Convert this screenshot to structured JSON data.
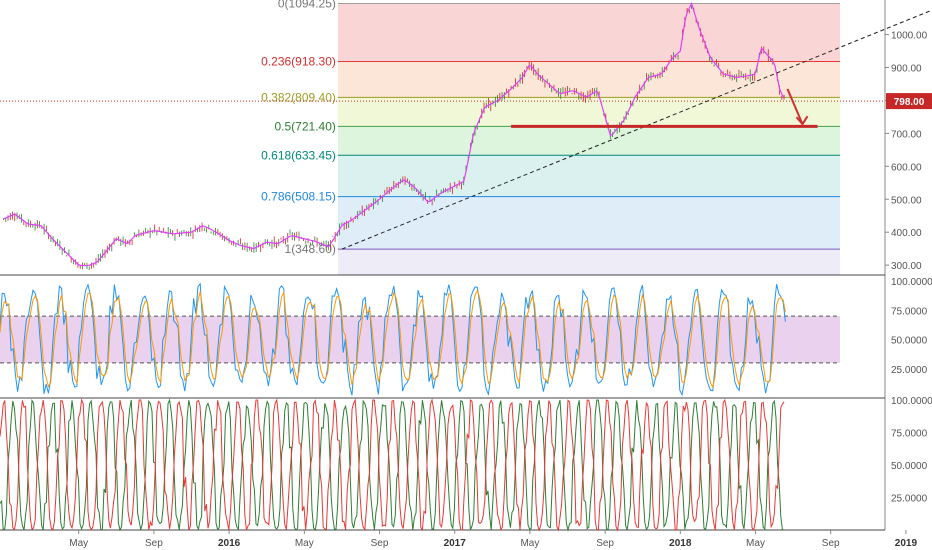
{
  "colors": {
    "fib_0": "#f8d0d0",
    "fib_236": "#fbe3d4",
    "fib_382": "#eef7d4",
    "fib_5": "#d9f3d9",
    "fib_618": "#d6f0ee",
    "fib_786": "#dcebf8",
    "fib_1": "#ecebf6",
    "price_up": "#2e7d32",
    "price_down": "#c62828",
    "ma_line": "#e040fb",
    "price_tag": "#c62828",
    "stoch_k": "#2196f3",
    "stoch_d": "#ff9800",
    "stoch_band": "#e1bee7",
    "osc_red": "#e53935",
    "osc_green": "#2e7d32"
  },
  "price_tag": "798.00",
  "chart_data": [
    {
      "type": "line",
      "x_unit": "month index from Jan 2015",
      "fib_levels": [
        {
          "label": "0(1094.25)",
          "value": 1094.25
        },
        {
          "label": "0.236(918.30)",
          "value": 918.3
        },
        {
          "label": "0.382(809.40)",
          "value": 809.4
        },
        {
          "label": "0.5(721.40)",
          "value": 721.4
        },
        {
          "label": "0.618(633.45)",
          "value": 633.45
        },
        {
          "label": "0.786(508.15)",
          "value": 508.15
        },
        {
          "label": "1(348.60)",
          "value": 348.6
        }
      ],
      "y_ticks": [
        "1000.00",
        "900.00",
        "800.00",
        "700.00",
        "600.00",
        "500.00",
        "400.00",
        "300.00"
      ],
      "y_tick_values": [
        1000,
        900,
        800,
        700,
        600,
        500,
        400,
        300
      ],
      "ylim": [
        270,
        1105
      ],
      "x_ticks": [
        "May",
        "Sep",
        "2016",
        "May",
        "Sep",
        "2017",
        "May",
        "Sep",
        "2018",
        "May",
        "Sep",
        "2019"
      ],
      "x_tick_months": [
        4,
        8,
        12,
        16,
        20,
        24,
        28,
        32,
        36,
        40,
        44,
        48
      ],
      "bold_ticks": [
        "2016",
        "2017",
        "2018",
        "2019"
      ],
      "price_path": [
        [
          0,
          440
        ],
        [
          0.6,
          455
        ],
        [
          1.3,
          425
        ],
        [
          2,
          420
        ],
        [
          2.6,
          380
        ],
        [
          3.3,
          340
        ],
        [
          4,
          300
        ],
        [
          4.5,
          298
        ],
        [
          5,
          310
        ],
        [
          6,
          380
        ],
        [
          6.6,
          365
        ],
        [
          7,
          390
        ],
        [
          8,
          405
        ],
        [
          9,
          395
        ],
        [
          10,
          400
        ],
        [
          10.6,
          420
        ],
        [
          11,
          410
        ],
        [
          11.6,
          390
        ],
        [
          12,
          375
        ],
        [
          12.6,
          360
        ],
        [
          13.3,
          350
        ],
        [
          14,
          370
        ],
        [
          14.6,
          365
        ],
        [
          15.3,
          390
        ],
        [
          16,
          380
        ],
        [
          16.6,
          372
        ],
        [
          17.3,
          355
        ],
        [
          18,
          420
        ],
        [
          18.6,
          440
        ],
        [
          19.3,
          470
        ],
        [
          20,
          500
        ],
        [
          20.6,
          530
        ],
        [
          21.3,
          560
        ],
        [
          21.9,
          535
        ],
        [
          22.6,
          490
        ],
        [
          23.3,
          520
        ],
        [
          24,
          540
        ],
        [
          24.5,
          555
        ],
        [
          25,
          700
        ],
        [
          25.6,
          780
        ],
        [
          26.3,
          800
        ],
        [
          27,
          835
        ],
        [
          27.6,
          870
        ],
        [
          28,
          910
        ],
        [
          28.4,
          880
        ],
        [
          29,
          850
        ],
        [
          29.6,
          820
        ],
        [
          30.3,
          830
        ],
        [
          31,
          810
        ],
        [
          31.6,
          830
        ],
        [
          32.3,
          690
        ],
        [
          33,
          740
        ],
        [
          33.6,
          810
        ],
        [
          34.3,
          870
        ],
        [
          35,
          880
        ],
        [
          35.6,
          930
        ],
        [
          36,
          950
        ],
        [
          36.3,
          1060
        ],
        [
          36.6,
          1094
        ],
        [
          37,
          1020
        ],
        [
          37.6,
          930
        ],
        [
          38.3,
          880
        ],
        [
          39,
          870
        ],
        [
          39.6,
          875
        ],
        [
          40,
          880
        ],
        [
          40.3,
          960
        ],
        [
          40.6,
          940
        ],
        [
          41,
          915
        ],
        [
          41.3,
          830
        ],
        [
          41.6,
          798
        ]
      ],
      "trend_line": {
        "from": [
          18,
          348.6
        ],
        "to": [
          50.5,
          1100
        ]
      },
      "support_line": {
        "from": [
          27,
          721.4
        ],
        "to": [
          43.3,
          721.4
        ]
      },
      "forecast_arrow": {
        "from": [
          41.7,
          835
        ],
        "to": [
          42.5,
          728
        ]
      }
    },
    {
      "type": "line",
      "indicator": "stochastic oscillator",
      "y_ticks": [
        "100.0000",
        "75.0000",
        "50.0000",
        "25.0000"
      ],
      "y_tick_values": [
        100,
        75,
        50,
        25
      ],
      "ylim": [
        0,
        100
      ],
      "upper_band": 70,
      "lower_band": 30
    },
    {
      "type": "line",
      "indicator": "oscillator (two series)",
      "y_ticks": [
        "100.0000",
        "75.0000",
        "50.0000",
        "25.0000"
      ],
      "y_tick_values": [
        100,
        75,
        50,
        25
      ],
      "ylim": [
        0,
        100
      ]
    }
  ]
}
